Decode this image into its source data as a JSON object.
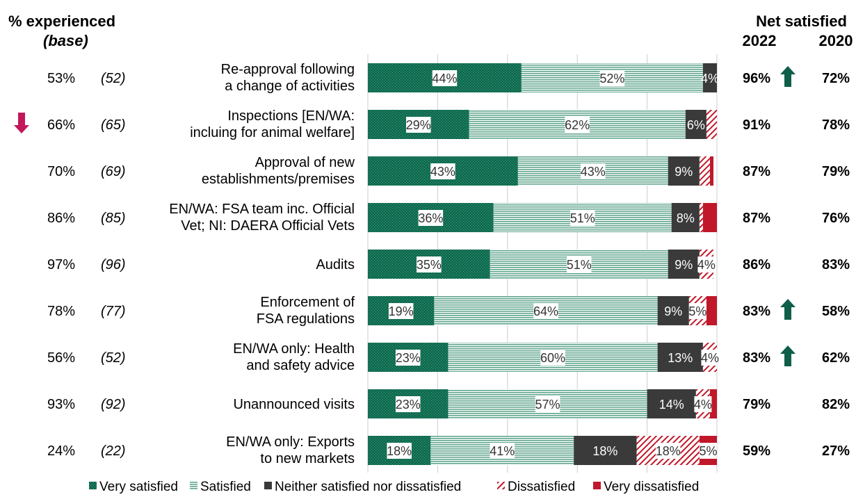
{
  "chart_data": {
    "type": "bar",
    "stacked": true,
    "orientation": "horizontal",
    "xlim": [
      0,
      100
    ],
    "grid": true,
    "legend_position": "bottom",
    "headers": {
      "experienced": "% experienced",
      "base": "(base)",
      "net": "Net satisfied",
      "year_a": "2022",
      "year_b": "2020"
    },
    "series": [
      {
        "name": "Very satisfied",
        "color": "#0e6b4f",
        "pattern": "dots"
      },
      {
        "name": "Satisfied",
        "color": "#7bb6a2",
        "pattern": "hlines"
      },
      {
        "name": "Neither satisfied nor dissatisfied",
        "color": "#3a3a3a",
        "pattern": "solid"
      },
      {
        "name": "Dissatisfied",
        "color": "#c0182a",
        "pattern": "diagonal"
      },
      {
        "name": "Very dissatisfied",
        "color": "#c0182a",
        "pattern": "solid"
      }
    ],
    "rows": [
      {
        "category": [
          "Re-approval following",
          "a change of activities"
        ],
        "experienced": "53%",
        "base": "(52)",
        "values": [
          44,
          52,
          4,
          0,
          0
        ],
        "labels": [
          "44%",
          "52%",
          "4%",
          "",
          ""
        ],
        "net_2022": "96%",
        "net_2020": "72%",
        "trend": "up",
        "flag": ""
      },
      {
        "category": [
          "Inspections [EN/WA:",
          "incluing for animal welfare]"
        ],
        "experienced": "66%",
        "base": "(65)",
        "values": [
          29,
          62,
          6,
          3,
          0
        ],
        "labels": [
          "29%",
          "62%",
          "6%",
          "",
          ""
        ],
        "net_2022": "91%",
        "net_2020": "78%",
        "trend": "",
        "flag": "down"
      },
      {
        "category": [
          "Approval of new",
          "establishments/premises"
        ],
        "experienced": "70%",
        "base": "(69)",
        "values": [
          43,
          43,
          9,
          3,
          1
        ],
        "labels": [
          "43%",
          "43%",
          "9%",
          "",
          ""
        ],
        "net_2022": "87%",
        "net_2020": "79%",
        "trend": "",
        "flag": ""
      },
      {
        "category": [
          "EN/WA: FSA team inc. Official",
          "Vet; NI: DAERA Official Vets"
        ],
        "experienced": "86%",
        "base": "(85)",
        "values": [
          36,
          51,
          8,
          1,
          4
        ],
        "labels": [
          "36%",
          "51%",
          "8%",
          "",
          ""
        ],
        "net_2022": "87%",
        "net_2020": "76%",
        "trend": "",
        "flag": ""
      },
      {
        "category": [
          "Audits"
        ],
        "experienced": "97%",
        "base": "(96)",
        "values": [
          35,
          51,
          9,
          4,
          0
        ],
        "labels": [
          "35%",
          "51%",
          "9%",
          "4%",
          ""
        ],
        "net_2022": "86%",
        "net_2020": "83%",
        "trend": "",
        "flag": ""
      },
      {
        "category": [
          "Enforcement of",
          "FSA regulations"
        ],
        "experienced": "78%",
        "base": "(77)",
        "values": [
          19,
          64,
          9,
          5,
          3
        ],
        "labels": [
          "19%",
          "64%",
          "9%",
          "5%",
          ""
        ],
        "net_2022": "83%",
        "net_2020": "58%",
        "trend": "up",
        "flag": ""
      },
      {
        "category": [
          "EN/WA only: Health",
          "and safety advice"
        ],
        "experienced": "56%",
        "base": "(52)",
        "values": [
          23,
          60,
          13,
          4,
          0
        ],
        "labels": [
          "23%",
          "60%",
          "13%",
          "4%",
          ""
        ],
        "net_2022": "83%",
        "net_2020": "62%",
        "trend": "up",
        "flag": ""
      },
      {
        "category": [
          "Unannounced visits"
        ],
        "experienced": "93%",
        "base": "(92)",
        "values": [
          23,
          57,
          14,
          4,
          2
        ],
        "labels": [
          "23%",
          "57%",
          "14%",
          "4%",
          ""
        ],
        "net_2022": "79%",
        "net_2020": "82%",
        "trend": "",
        "flag": ""
      },
      {
        "category": [
          "EN/WA only: Exports",
          "to new markets"
        ],
        "experienced": "24%",
        "base": "(22)",
        "values": [
          18,
          41,
          18,
          18,
          5
        ],
        "labels": [
          "18%",
          "41%",
          "18%",
          "18%",
          "5%"
        ],
        "net_2022": "59%",
        "net_2020": "27%",
        "trend": "",
        "flag": ""
      }
    ],
    "colors": {
      "up_arrow": "#0e5e4a",
      "down_arrow": "#c2185b",
      "gridline": "#cccccc"
    }
  }
}
